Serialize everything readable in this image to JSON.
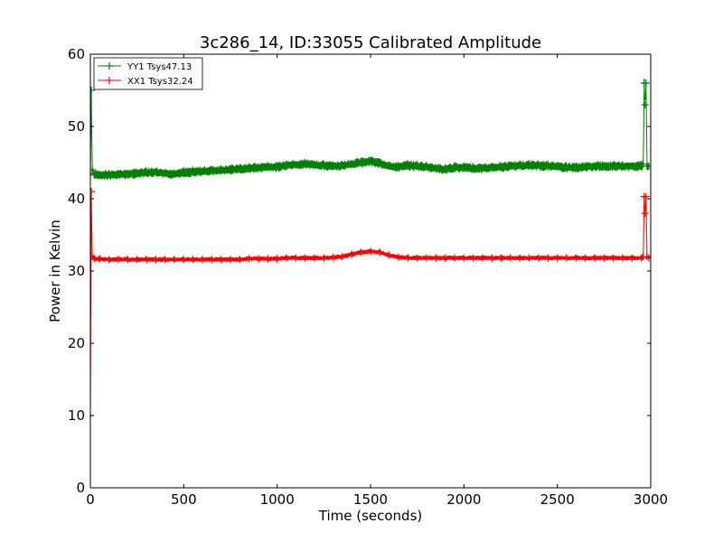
{
  "chart_data": {
    "type": "line",
    "title": "3c286_14, ID:33055 Calibrated Amplitude",
    "xlabel": "Time (seconds)",
    "ylabel": "Power in Kelvin",
    "xlim": [
      0,
      3000
    ],
    "ylim": [
      0,
      60
    ],
    "xticks": [
      "0",
      "500",
      "1000",
      "1500",
      "2000",
      "2500",
      "3000"
    ],
    "yticks": [
      "0",
      "10",
      "20",
      "30",
      "40",
      "50",
      "60"
    ],
    "grid": false,
    "legend_position": "top-left",
    "marker": "+",
    "series": [
      {
        "name": "YY1 Tsys47.13",
        "color": "#008000",
        "x": [
          0,
          5,
          10,
          20,
          50,
          100,
          150,
          200,
          250,
          300,
          350,
          400,
          450,
          500,
          550,
          600,
          650,
          700,
          750,
          800,
          850,
          900,
          950,
          1000,
          1050,
          1100,
          1150,
          1200,
          1250,
          1300,
          1350,
          1400,
          1450,
          1500,
          1550,
          1600,
          1650,
          1700,
          1750,
          1800,
          1850,
          1900,
          1950,
          2000,
          2050,
          2100,
          2150,
          2200,
          2250,
          2300,
          2350,
          2400,
          2450,
          2500,
          2550,
          2600,
          2650,
          2700,
          2750,
          2800,
          2850,
          2900,
          2950,
          2960,
          2965,
          2970,
          2975,
          2980,
          2990
        ],
        "y": [
          43.5,
          55,
          44,
          43.3,
          43.3,
          43.3,
          43.4,
          43.4,
          43.5,
          43.6,
          43.7,
          43.5,
          43.4,
          43.6,
          43.7,
          43.8,
          43.9,
          43.9,
          44,
          44.1,
          44.2,
          44.3,
          44.4,
          44.4,
          44.6,
          44.7,
          44.8,
          44.7,
          44.6,
          44.5,
          44.6,
          44.8,
          45,
          45.2,
          44.9,
          44.5,
          44.4,
          44.6,
          44.5,
          44.4,
          44.2,
          44.1,
          44.3,
          44.3,
          44.2,
          44.2,
          44.3,
          44.4,
          44.5,
          44.6,
          44.6,
          44.6,
          44.5,
          44.4,
          44.3,
          44.3,
          44.4,
          44.5,
          44.5,
          44.5,
          44.5,
          44.5,
          44.5,
          44.8,
          56,
          53,
          56,
          44.5,
          44.5
        ]
      },
      {
        "name": "XX1 Tsys32.24",
        "color": "#ff0000",
        "x": [
          0,
          5,
          10,
          20,
          50,
          100,
          150,
          200,
          250,
          300,
          350,
          400,
          450,
          500,
          550,
          600,
          650,
          700,
          750,
          800,
          850,
          900,
          950,
          1000,
          1050,
          1100,
          1150,
          1200,
          1250,
          1300,
          1350,
          1400,
          1450,
          1500,
          1550,
          1600,
          1650,
          1700,
          1750,
          1800,
          1850,
          1900,
          1950,
          2000,
          2050,
          2100,
          2150,
          2200,
          2250,
          2300,
          2350,
          2400,
          2450,
          2500,
          2550,
          2600,
          2650,
          2700,
          2750,
          2800,
          2850,
          2900,
          2950,
          2960,
          2965,
          2970,
          2975,
          2980,
          2990
        ],
        "y": [
          10,
          41,
          32,
          31.7,
          31.7,
          31.6,
          31.6,
          31.6,
          31.6,
          31.6,
          31.6,
          31.6,
          31.6,
          31.6,
          31.6,
          31.6,
          31.6,
          31.6,
          31.6,
          31.6,
          31.7,
          31.7,
          31.7,
          31.7,
          31.8,
          31.8,
          31.8,
          31.8,
          31.8,
          31.9,
          32,
          32.3,
          32.6,
          32.7,
          32.6,
          32.2,
          31.9,
          31.8,
          31.8,
          31.8,
          31.8,
          31.8,
          31.8,
          31.8,
          31.8,
          31.8,
          31.8,
          31.8,
          31.8,
          31.8,
          31.8,
          31.8,
          31.8,
          31.8,
          31.8,
          31.8,
          31.8,
          31.8,
          31.8,
          31.8,
          31.8,
          31.8,
          31.8,
          32,
          40.3,
          38,
          40.3,
          32,
          31.8
        ]
      }
    ]
  }
}
